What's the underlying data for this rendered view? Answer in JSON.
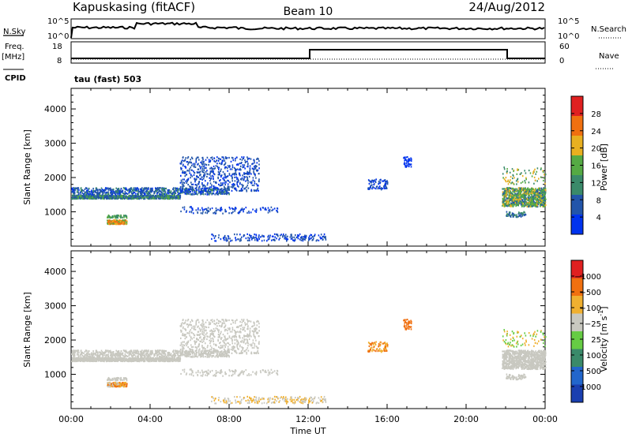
{
  "header": {
    "station": "Kapuskasing (fitACF)",
    "beam": "Beam 10",
    "date": "24/Aug/2012"
  },
  "status_panels": {
    "nsky_label": "N.Sky",
    "nsky_top": "10^5",
    "nsky_bottom": "10^0",
    "nsearch_top": "10^5",
    "nsearch_bottom": "10^0",
    "nsearch_label": "N.Search",
    "freq_label_1": "Freq.",
    "freq_label_2": "[MHz]",
    "freq_top": "18",
    "freq_bottom": "8",
    "nave_top": "60",
    "nave_bottom": "0",
    "nave_label": "Nave",
    "cpid_label": "CPID",
    "cpid_value": "tau (fast) 503"
  },
  "chart_data": [
    {
      "type": "heatmap",
      "name": "power-panel",
      "ylabel": "Slant Range [km]",
      "yticks": [
        1000,
        2000,
        3000,
        4000
      ],
      "ylim": [
        0,
        4600
      ],
      "xlim": [
        0,
        24
      ],
      "colorbar": {
        "label": "Power [dB]",
        "ticks": [
          "4",
          "8",
          "12",
          "16",
          "20",
          "24",
          "28"
        ],
        "colors": [
          "#0033ee",
          "#2255aa",
          "#3a8a6a",
          "#55aa44",
          "#e8b020",
          "#f07010",
          "#e02020"
        ]
      }
    },
    {
      "type": "heatmap",
      "name": "velocity-panel",
      "ylabel": "Slant Range [km]",
      "yticks": [
        1000,
        2000,
        3000,
        4000
      ],
      "ylim": [
        0,
        4600
      ],
      "xlim": [
        0,
        24
      ],
      "xlabel": "Time UT",
      "xticks": [
        "00:00",
        "04:00",
        "08:00",
        "12:00",
        "16:00",
        "20:00",
        "00:00"
      ],
      "colorbar": {
        "label": "Velocity [m s",
        "label_sup": "-1",
        "ticks": [
          "1000",
          "500",
          "100",
          "25",
          "−25",
          "−100",
          "−500",
          "−1000"
        ],
        "colors": [
          "#1a3fb0",
          "#2266cc",
          "#3a8a6a",
          "#66cc44",
          "#c8c8c0",
          "#f0b030",
          "#f07010",
          "#e02020"
        ]
      }
    }
  ]
}
